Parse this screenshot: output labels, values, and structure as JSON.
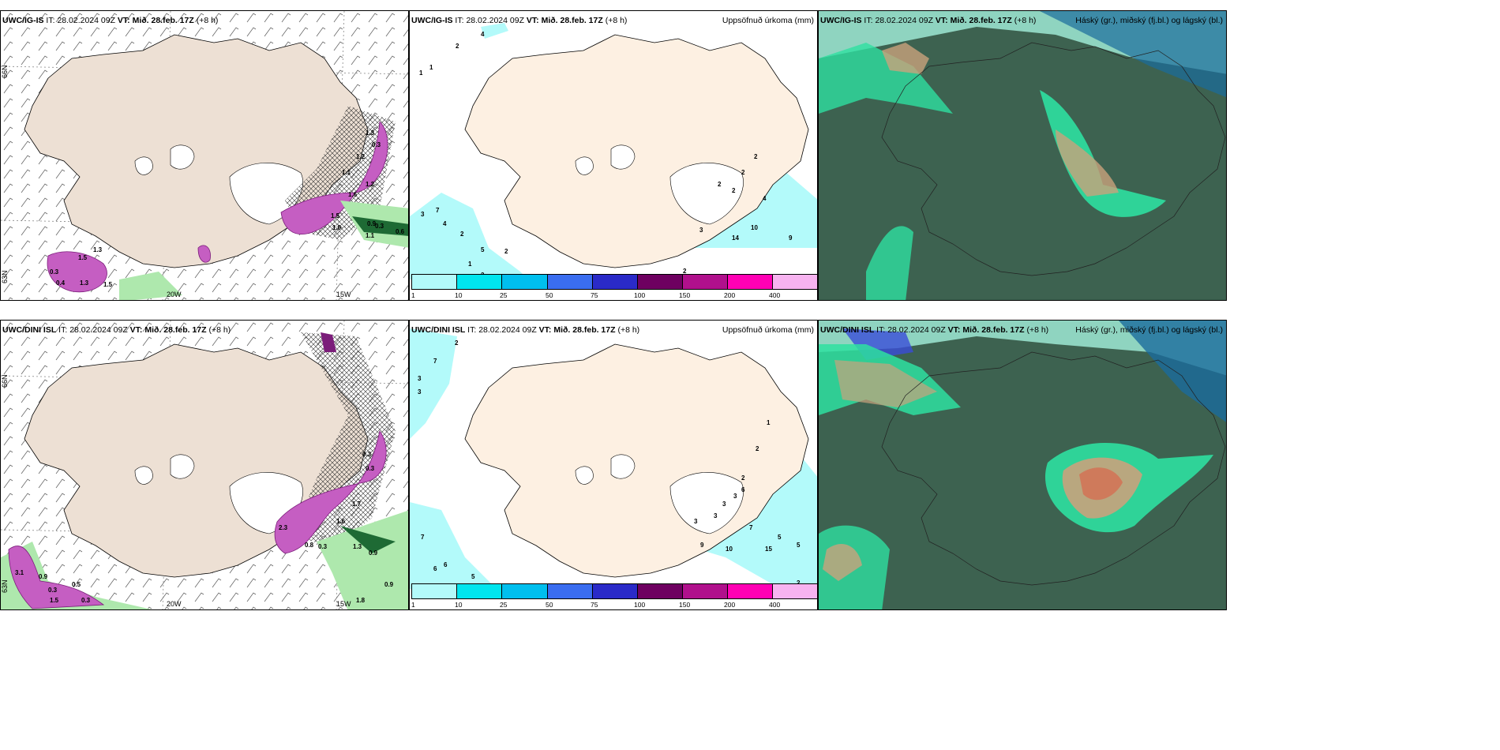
{
  "panels": [
    {
      "id": "wind-top",
      "model": "UWC/IG-IS",
      "it_label": "IT:",
      "it": "28.02.2024 09Z",
      "vt_label": "VT:",
      "vt": "Mið. 28.feb. 17Z",
      "lead": "(+8 h)",
      "right_title": ""
    },
    {
      "id": "precip-top",
      "model": "UWC/IG-IS",
      "it_label": "IT:",
      "it": "28.02.2024 09Z",
      "vt_label": "VT:",
      "vt": "Mið. 28.feb. 17Z",
      "lead": "(+8 h)",
      "right_title": "Uppsöfnuð úrkoma (mm)"
    },
    {
      "id": "cloud-top",
      "model": "UWC/IG-IS",
      "it_label": "IT:",
      "it": "28.02.2024 09Z",
      "vt_label": "VT:",
      "vt": "Mið. 28.feb. 17Z",
      "lead": "(+8 h)",
      "right_title": "Háský (gr.), miðský (fj.bl.) og lágský (bl.)"
    },
    {
      "id": "wind-bottom",
      "model": "UWC/DINI ISL",
      "it_label": "IT:",
      "it": "28.02.2024 09Z",
      "vt_label": "VT:",
      "vt": "Mið. 28.feb. 17Z",
      "lead": "(+8 h)",
      "right_title": ""
    },
    {
      "id": "precip-bottom",
      "model": "UWC/DINI ISL",
      "it_label": "IT:",
      "it": "28.02.2024 09Z",
      "vt_label": "VT:",
      "vt": "Mið. 28.feb. 17Z",
      "lead": "(+8 h)",
      "right_title": "Uppsöfnuð úrkoma (mm)"
    },
    {
      "id": "cloud-bottom",
      "model": "UWC/DINI ISL",
      "it_label": "IT:",
      "it": "28.02.2024 09Z",
      "vt_label": "VT:",
      "vt": "Mið. 28.feb. 17Z",
      "lead": "(+8 h)",
      "right_title": "Háský (gr.), miðský (fj.bl.) og lágský (bl.)"
    }
  ],
  "graticule": {
    "lon_20": "20W",
    "lon_15": "15W",
    "lat_66": "66N",
    "lat_63": "63N"
  },
  "colorbar": {
    "ticks": [
      "1",
      "10",
      "25",
      "50",
      "75",
      "100",
      "150",
      "200",
      "400"
    ],
    "colors": [
      "#b3fafa",
      "#00e5ee",
      "#00bfee",
      "#3a6df0",
      "#2a2ac8",
      "#6e0060",
      "#b0108c",
      "#ff00b4",
      "#f7b3f0"
    ]
  },
  "precip_labels_top": [
    "4",
    "2",
    "1",
    "1",
    "3",
    "7",
    "4",
    "2",
    "5",
    "1",
    "2",
    "2",
    "2",
    "2",
    "2",
    "2",
    "4",
    "3",
    "14",
    "10",
    "9",
    "2"
  ],
  "precip_labels_bottom": [
    "2",
    "7",
    "3",
    "3",
    "2",
    "1",
    "2",
    "3",
    "3",
    "6",
    "3",
    "3",
    "7",
    "9",
    "10",
    "15",
    "5",
    "5",
    "7",
    "6",
    "6",
    "5",
    "5",
    "2"
  ],
  "wind_labels_top": [
    "1.3",
    "0.3",
    "1.2",
    "1.1",
    "1.6",
    "1.2",
    "1.5",
    "1.0",
    "0.9",
    "0.3",
    "0.6",
    "1.1",
    "1.5",
    "0.3",
    "0.4",
    "1.3",
    "1.5",
    "1.3"
  ],
  "wind_labels_bottom": [
    "0.3",
    "0.3",
    "1.7",
    "1.6",
    "2.3",
    "0.8",
    "0.3",
    "1.3",
    "0.9",
    "0.9",
    "1.8",
    "3.1",
    "0.9",
    "0.3",
    "0.5",
    "1.5",
    "0.3"
  ],
  "colors": {
    "land": "#ede0d4",
    "precip_land": "#fdf0e2",
    "ocean_cloud": "#3d6250",
    "cloud_high": "#2ee0a0",
    "cloud_low": "#1a6c9c",
    "cloud_mid": "#c9a27c",
    "precip_band": "#c55ec2",
    "green_band": "#aee8ad"
  }
}
